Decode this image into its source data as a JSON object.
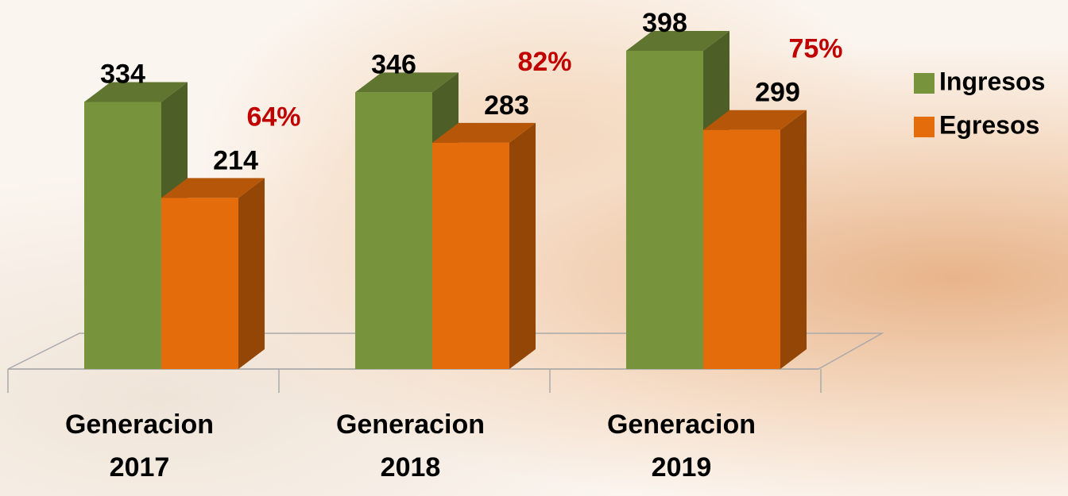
{
  "chart_data": {
    "type": "bar3d",
    "categories": [
      "Generacion 2017",
      "Generacion 2018",
      "Generacion 2019"
    ],
    "series": [
      {
        "name": "Ingresos",
        "color": "#77933c",
        "values": [
          334,
          346,
          398
        ]
      },
      {
        "name": "Egresos",
        "color": "#e46c0a",
        "values": [
          214,
          283,
          299
        ]
      }
    ],
    "annotations": [
      "64%",
      "82%",
      "75%"
    ],
    "annotation_color": "#c00000",
    "legend": "right"
  }
}
